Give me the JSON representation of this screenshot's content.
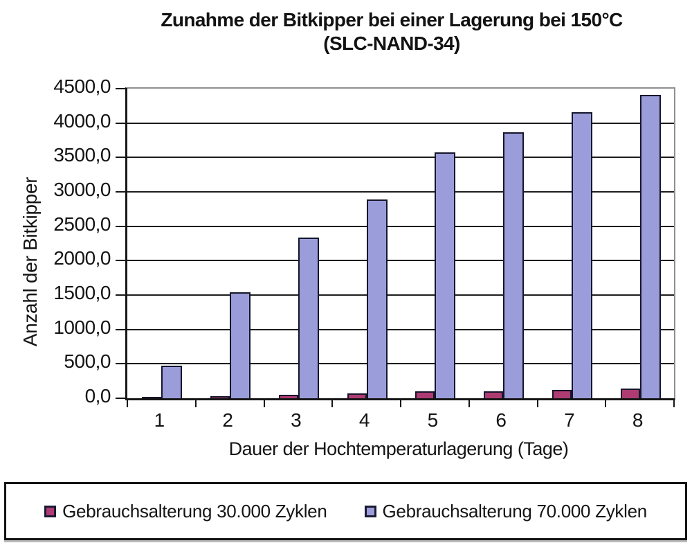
{
  "chart_data": {
    "type": "bar",
    "title": "Zunahme der Bitkipper bei einer  Lagerung bei 150°C",
    "subtitle": "(SLC-NAND-34)",
    "categories": [
      "1",
      "2",
      "3",
      "4",
      "5",
      "6",
      "7",
      "8"
    ],
    "series": [
      {
        "name": "Gebrauchsalterung 30.000 Zyklen",
        "color": "#ae3b72",
        "values": [
          20,
          35,
          55,
          70,
          100,
          105,
          125,
          140
        ]
      },
      {
        "name": "Gebrauchsalterung 70.000 Zyklen",
        "color": "#9b9dda",
        "values": [
          475,
          1545,
          2340,
          2890,
          3570,
          3870,
          4160,
          4410
        ]
      }
    ],
    "xlabel": "Dauer der Hochtemperaturlagerung  (Tage)",
    "ylabel": "Anzahl der Bitkipper",
    "ylim": [
      0,
      4500
    ],
    "ytick_step": 500,
    "ytick_labels": [
      "0,0",
      "500,0",
      "1000,0",
      "1500,0",
      "2000,0",
      "2500,0",
      "3000,0",
      "3500,0",
      "4000,0",
      "4500,0"
    ],
    "grid": "horizontal",
    "legend_position": "bottom"
  }
}
